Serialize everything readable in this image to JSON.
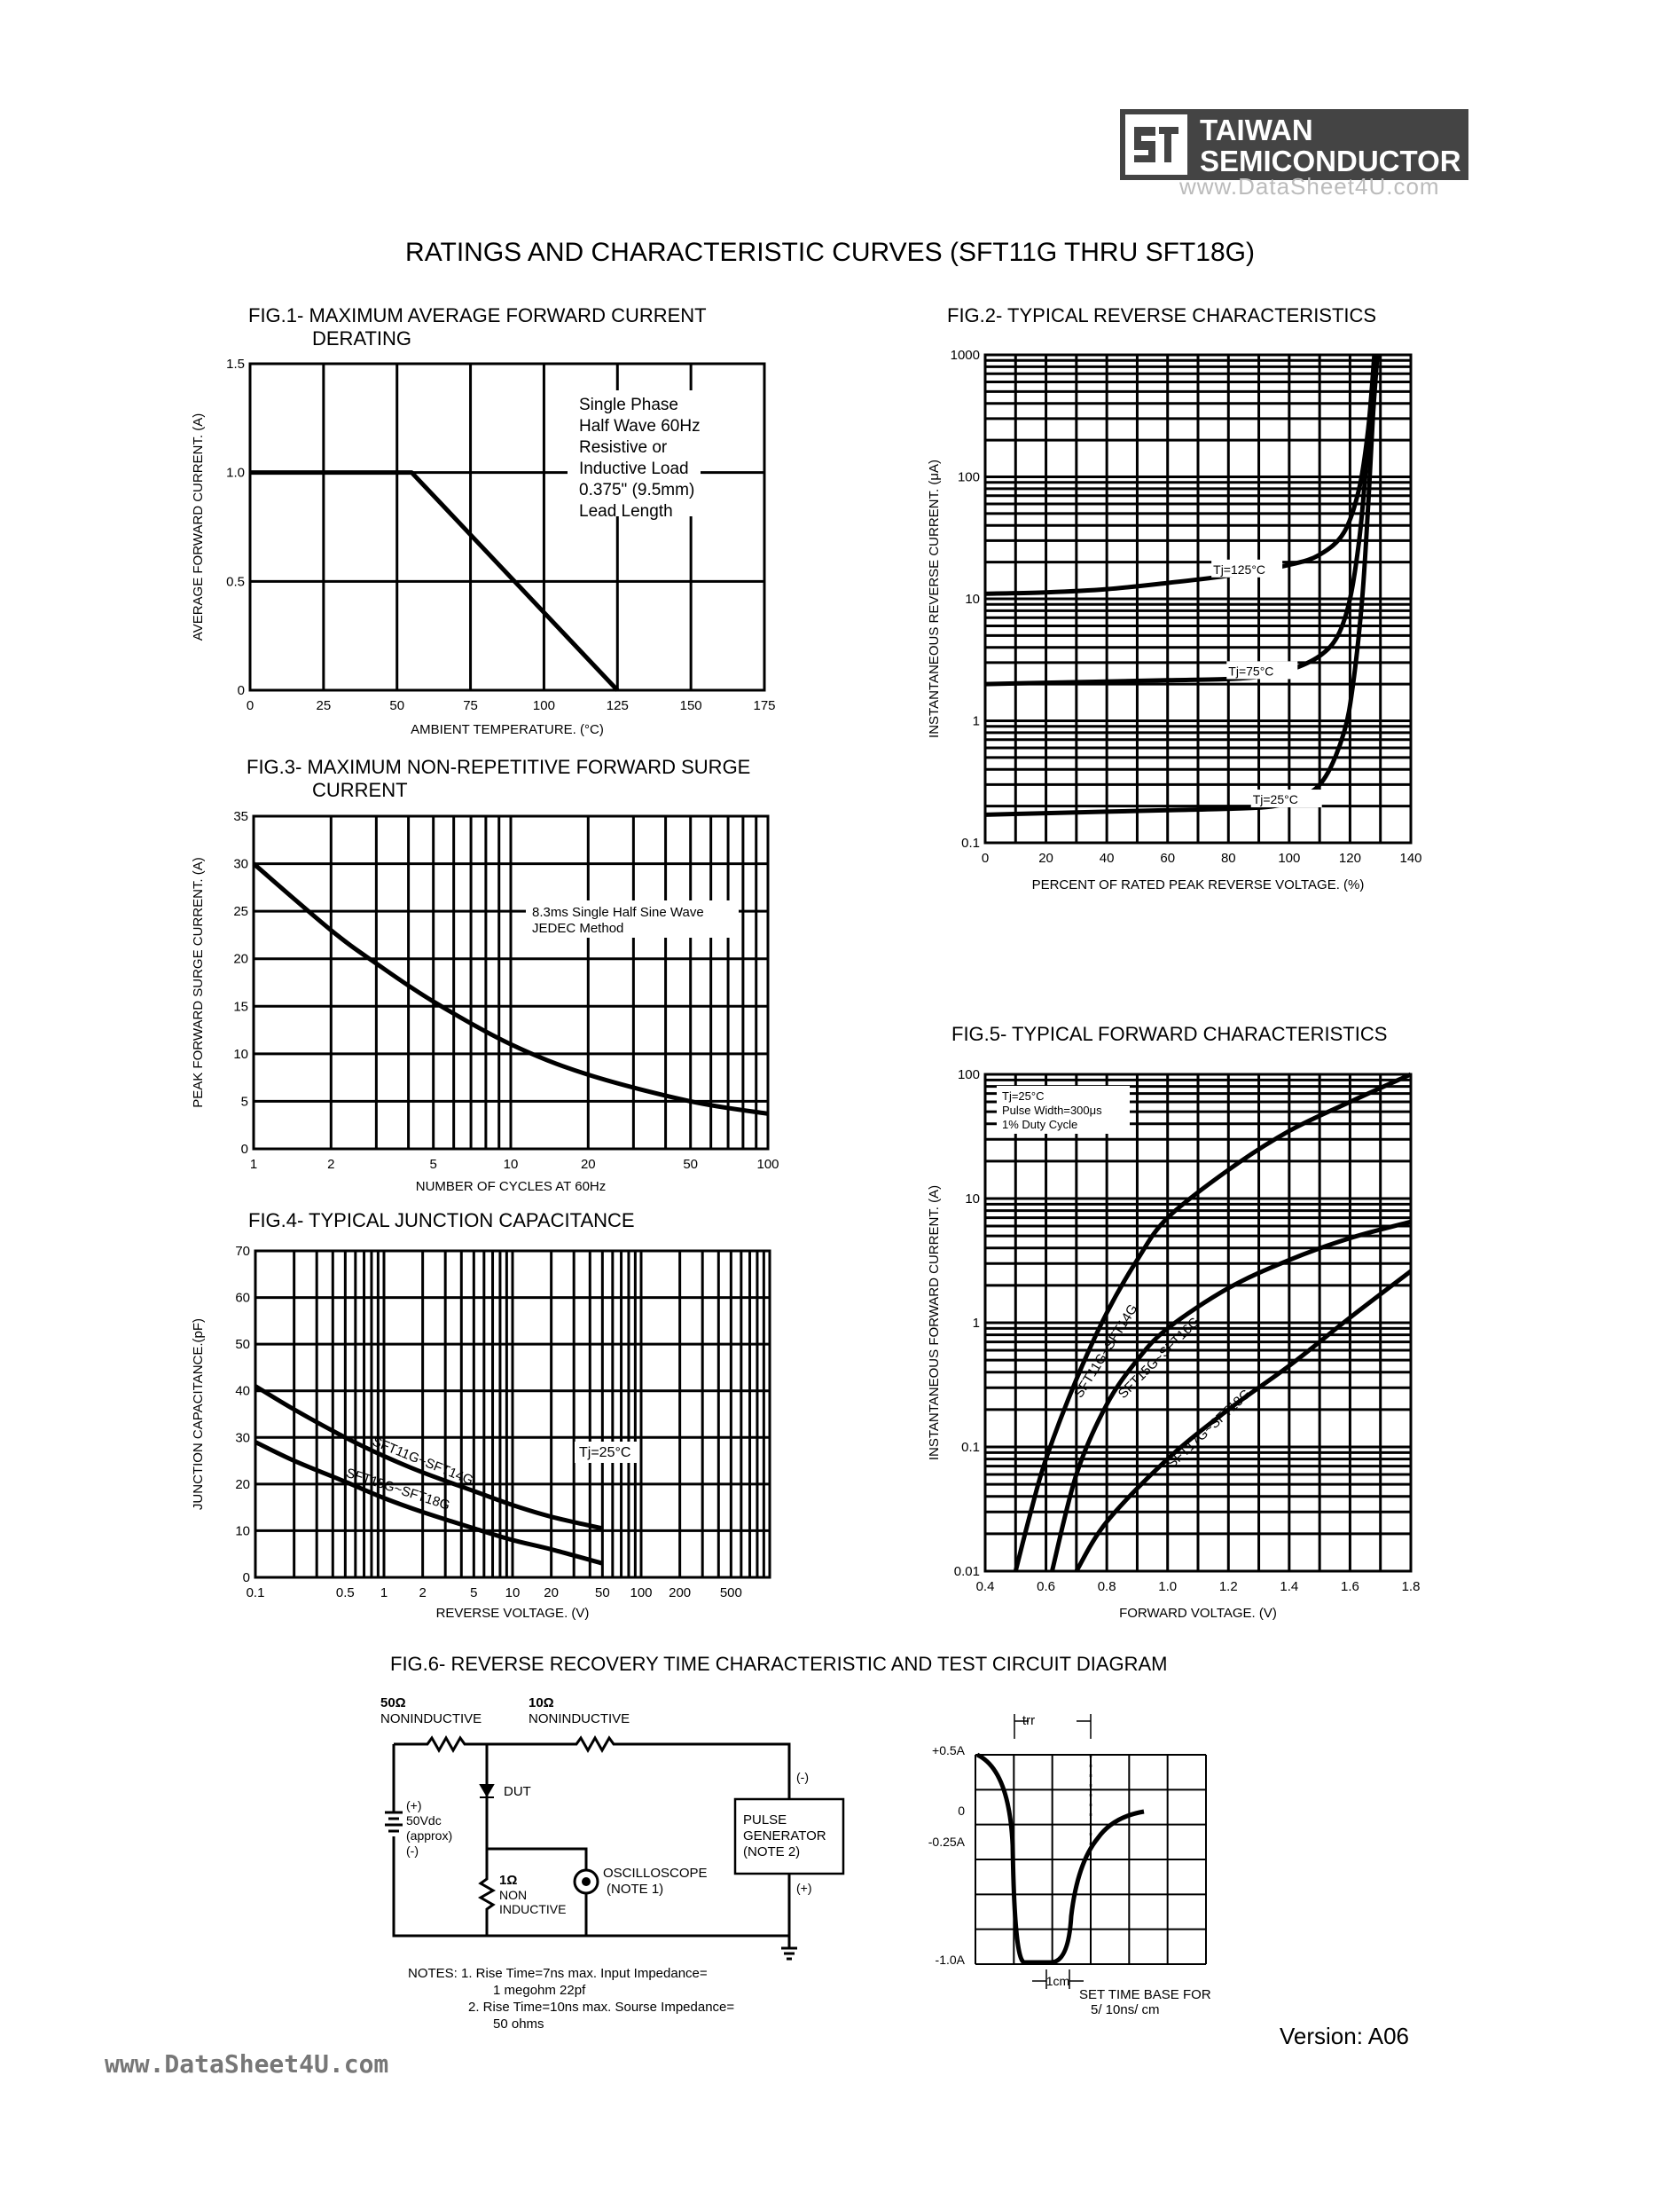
{
  "header": {
    "brand_line1": "TAIWAN",
    "brand_line2": "SEMICONDUCTOR",
    "watermark": "www.DataSheet4U.com",
    "page_title": "RATINGS AND CHARACTERISTIC CURVES (SFT11G THRU SFT18G)"
  },
  "footer": {
    "version": "Version: A06",
    "watermark": "www.DataSheet4U.com"
  },
  "chart_data": [
    {
      "id": "fig1",
      "type": "line",
      "title": "FIG.1- MAXIMUM AVERAGE FORWARD CURRENT DERATING",
      "title_lines": [
        "FIG.1- MAXIMUM AVERAGE FORWARD CURRENT",
        "DERATING"
      ],
      "xlabel": "AMBIENT TEMPERATURE. (°C)",
      "ylabel": "AVERAGE FORWARD CURRENT. (A)",
      "xlim": [
        0,
        175
      ],
      "ylim": [
        0,
        1.5
      ],
      "xticks": [
        0,
        25,
        50,
        75,
        100,
        125,
        150,
        175
      ],
      "yticks": [
        0,
        0.5,
        1.0,
        1.5
      ],
      "ytick_labels": [
        "0",
        "0.5",
        "1.0",
        "1.5"
      ],
      "grid": true,
      "annotation": [
        "Single Phase",
        "Half Wave 60Hz",
        "Resistive or",
        "Inductive Load",
        "0.375\" (9.5mm)",
        "Lead Length"
      ],
      "series": [
        {
          "x": [
            0,
            55,
            125
          ],
          "y": [
            1.0,
            1.0,
            0
          ]
        }
      ]
    },
    {
      "id": "fig2",
      "type": "line",
      "title": "FIG.2- TYPICAL REVERSE CHARACTERISTICS",
      "xlabel": "PERCENT OF RATED PEAK REVERSE VOLTAGE. (%)",
      "ylabel": "INSTANTANEOUS REVERSE CURRENT. (μA)",
      "xlim": [
        0,
        140
      ],
      "ylim": [
        0.1,
        1000
      ],
      "yscale": "log",
      "xticks": [
        0,
        20,
        40,
        60,
        80,
        100,
        120,
        140
      ],
      "yticks": [
        0.1,
        1,
        10,
        100,
        1000
      ],
      "ytick_labels": [
        "0.1",
        "1",
        "10",
        "100",
        "1000"
      ],
      "grid": true,
      "series": [
        {
          "name": "Tj=125°C",
          "x": [
            0,
            20,
            40,
            60,
            80,
            100,
            110,
            118,
            123,
            126,
            128
          ],
          "y": [
            11,
            11.3,
            12,
            13.5,
            15.5,
            19,
            23,
            35,
            80,
            250,
            1000
          ]
        },
        {
          "name": "Tj=75°C",
          "x": [
            0,
            20,
            40,
            60,
            80,
            90,
            100,
            110,
            116,
            120,
            123,
            125,
            127,
            128.5
          ],
          "y": [
            2.0,
            2.05,
            2.1,
            2.15,
            2.2,
            2.3,
            2.6,
            3.4,
            5,
            10,
            30,
            100,
            400,
            1000
          ]
        },
        {
          "name": "Tj=25°C",
          "x": [
            0,
            20,
            40,
            60,
            80,
            95,
            105,
            112,
            118,
            121,
            124,
            126,
            127.5,
            129
          ],
          "y": [
            0.17,
            0.175,
            0.18,
            0.185,
            0.19,
            0.2,
            0.24,
            0.35,
            0.8,
            2,
            10,
            60,
            300,
            1000
          ]
        }
      ]
    },
    {
      "id": "fig3",
      "type": "line",
      "title": "FIG.3- MAXIMUM NON-REPETITIVE FORWARD SURGE CURRENT",
      "title_lines": [
        "FIG.3- MAXIMUM NON-REPETITIVE FORWARD SURGE",
        "CURRENT"
      ],
      "xlabel": "NUMBER OF CYCLES AT 60Hz",
      "ylabel": "PEAK FORWARD SURGE CURRENT. (A)",
      "xlim": [
        1,
        100
      ],
      "xscale": "log",
      "ylim": [
        0,
        35
      ],
      "xticks": [
        1,
        2,
        5,
        10,
        20,
        50,
        100
      ],
      "yticks": [
        0,
        5,
        10,
        15,
        20,
        25,
        30,
        35
      ],
      "grid": true,
      "annotation": [
        "8.3ms Single Half Sine Wave",
        "JEDEC Method"
      ],
      "series": [
        {
          "x": [
            1,
            2,
            3,
            5,
            10,
            20,
            50,
            100
          ],
          "y": [
            30,
            23,
            19.5,
            15.5,
            11,
            7.8,
            5,
            3.7
          ]
        }
      ]
    },
    {
      "id": "fig4",
      "type": "line",
      "title": "FIG.4- TYPICAL JUNCTION CAPACITANCE",
      "xlabel": "REVERSE VOLTAGE. (V)",
      "ylabel": "JUNCTION CAPACITANCE.(pF)",
      "xlim": [
        0.1,
        1000
      ],
      "xscale": "log",
      "ylim": [
        0,
        70
      ],
      "xticks": [
        0.1,
        0.5,
        1,
        2,
        5,
        10,
        20,
        50,
        100,
        200,
        500
      ],
      "xtick_labels": [
        "0.1",
        "0.5",
        "1",
        "2",
        "5",
        "10",
        "20",
        "50",
        "100",
        "200",
        "500"
      ],
      "yticks": [
        0,
        10,
        20,
        30,
        40,
        50,
        60,
        70
      ],
      "grid": true,
      "annotation": "Tj=25°C",
      "series": [
        {
          "name": "SFT11G~SFT14G",
          "x": [
            0.1,
            0.2,
            0.5,
            1,
            2,
            5,
            10,
            20,
            50
          ],
          "y": [
            41,
            36,
            30,
            26,
            22.5,
            18.5,
            15.5,
            13,
            10.5
          ]
        },
        {
          "name": "SFT15G~SFT18G",
          "x": [
            0.1,
            0.2,
            0.5,
            1,
            2,
            5,
            10,
            20,
            50
          ],
          "y": [
            29,
            25,
            20.5,
            17,
            14,
            10.5,
            8,
            6,
            3
          ]
        }
      ]
    },
    {
      "id": "fig5",
      "type": "line",
      "title": "FIG.5- TYPICAL FORWARD CHARACTERISTICS",
      "xlabel": "FORWARD VOLTAGE. (V)",
      "ylabel": "INSTANTANEOUS FORWARD CURRENT. (A)",
      "xlim": [
        0.4,
        1.8
      ],
      "ylim": [
        0.01,
        100
      ],
      "yscale": "log",
      "xticks": [
        0.4,
        0.6,
        0.8,
        1.0,
        1.2,
        1.4,
        1.6,
        1.8
      ],
      "xtick_labels": [
        "0.4",
        "0.6",
        "0.8",
        "1.0",
        "1.2",
        "1.4",
        "1.6",
        "1.8"
      ],
      "yticks": [
        0.01,
        0.1,
        1,
        10,
        100
      ],
      "ytick_labels": [
        "0.01",
        "0.1",
        "1",
        "10",
        "100"
      ],
      "grid": true,
      "annotation": [
        "Tj=25°C",
        "Pulse Width=300μs",
        "1% Duty Cycle"
      ],
      "series": [
        {
          "name": "SFT11G~SFT14G",
          "x": [
            0.5,
            0.55,
            0.6,
            0.7,
            0.8,
            0.9,
            1.0,
            1.2,
            1.4,
            1.6,
            1.8
          ],
          "y": [
            0.01,
            0.03,
            0.08,
            0.35,
            1.2,
            3.2,
            7,
            17,
            35,
            60,
            100
          ]
        },
        {
          "name": "SFT15G~SFT16G",
          "x": [
            0.62,
            0.7,
            0.8,
            0.9,
            1.0,
            1.2,
            1.4,
            1.6,
            1.8
          ],
          "y": [
            0.01,
            0.06,
            0.22,
            0.5,
            0.9,
            1.9,
            3.2,
            4.8,
            6.5
          ]
        },
        {
          "name": "SFT17G~SFT18G",
          "x": [
            0.7,
            0.8,
            1.0,
            1.2,
            1.4,
            1.6,
            1.8
          ],
          "y": [
            0.01,
            0.025,
            0.08,
            0.2,
            0.45,
            1.1,
            2.6
          ]
        }
      ]
    }
  ],
  "fig6": {
    "title": "FIG.6- REVERSE RECOVERY TIME CHARACTERISTIC AND TEST CIRCUIT DIAGRAM",
    "r1_value": "50Ω",
    "r1_label": "NONINDUCTIVE",
    "r2_value": "10Ω",
    "r2_label": "NONINDUCTIVE",
    "dut": "DUT",
    "source_plus": "(+)",
    "source_value": "50Vdc",
    "source_approx": "(approx)",
    "source_minus": "(-)",
    "r3_value": "1Ω",
    "r3_line1": "NON",
    "r3_line2": "INDUCTIVE",
    "scope_line1": "OSCILLOSCOPE",
    "scope_line2": "(NOTE 1)",
    "gen_line1": "PULSE",
    "gen_line2": "GENERATOR",
    "gen_line3": "(NOTE 2)",
    "gen_minus": "(-)",
    "gen_plus": "(+)",
    "notes": [
      "NOTES: 1. Rise Time=7ns max. Input Impedance=",
      "1 megohm 22pf",
      "2. Rise Time=10ns max. Sourse Impedance=",
      "50 ohms"
    ],
    "wave": {
      "trr": "trr",
      "y_labels": [
        "+0.5A",
        "0",
        "-0.25A",
        "-1.0A"
      ],
      "cm": "1cm",
      "timebase_line1": "SET TIME BASE FOR",
      "timebase_line2": "5/ 10ns/ cm"
    }
  }
}
